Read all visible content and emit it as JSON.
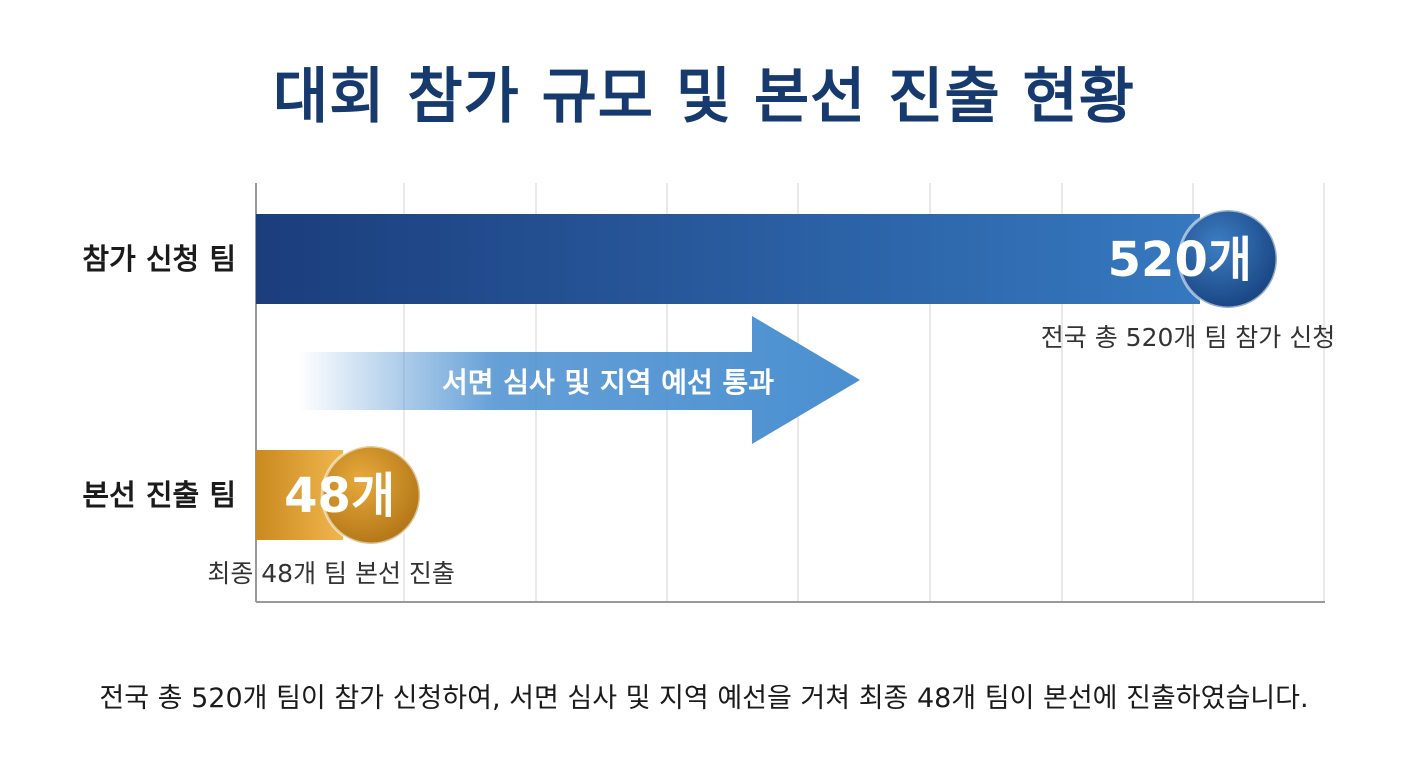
{
  "title": "대회 참가 규모 및 본선 진출 현황",
  "caption": "전국 총 520개 팀이 참가 신청하여, 서면 심사 및 지역 예선을 거쳐 최종 48개 팀이 본선에 진출하였습니다.",
  "chart_data": {
    "type": "bar",
    "orientation": "horizontal",
    "grid": true,
    "categories": [
      "참가 신청 팀",
      "본선 진출 팀"
    ],
    "values": [
      520,
      48
    ],
    "value_labels": [
      "520개",
      "48개"
    ],
    "sublabels": [
      "전국 총 520개 팀 참가 신청",
      "최종 48개 팀 본선 진출"
    ],
    "colors": [
      "#1d4c8c",
      "#d49a2e"
    ],
    "annotation": "서면 심사 및 지역 예선 통과"
  }
}
